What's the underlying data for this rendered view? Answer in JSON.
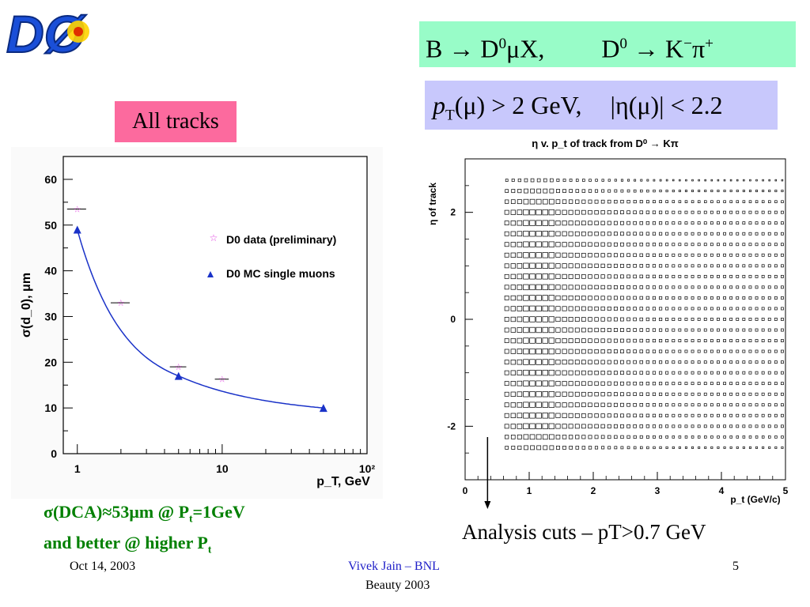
{
  "logo": {
    "text": "DØ"
  },
  "header": {
    "decay_parts": [
      "B → D",
      "0",
      "μX,",
      "D",
      "0",
      "→ K",
      "−",
      "π",
      "+"
    ],
    "cuts_parts": [
      "p",
      "T",
      "(μ) > 2 GeV,",
      "|η(μ)| < 2.2"
    ]
  },
  "label_all_tracks": "All tracks",
  "caption": {
    "line1_a": "σ(DCA)≈53μm @ P",
    "line1_sub": "t",
    "line1_b": "=1GeV",
    "line2_a": "and better @ higher P",
    "line2_sub": "t"
  },
  "analysis_note": "Analysis cuts – pT>0.7 GeV",
  "footer": {
    "date": "Oct 14, 2003",
    "author": "Vivek Jain – BNL",
    "conference": "Beauty 2003",
    "page": "5"
  },
  "colors": {
    "data_marker": "#e040e0",
    "mc_marker": "#1a32c8",
    "fit_curve": "#1a32c8",
    "decay_box": "#98fcc8",
    "cuts_box": "#c8c8fc",
    "tracks_box": "#fc6a9e",
    "caption": "#008000"
  },
  "chart_data": [
    {
      "type": "scatter",
      "title": "",
      "xlabel": "p_T, GeV",
      "ylabel": "σ(d_0), μm",
      "xscale": "log",
      "xlim": [
        0.8,
        100
      ],
      "ylim": [
        0,
        65
      ],
      "yticks": [
        "0",
        "10",
        "20",
        "30",
        "40",
        "50",
        "60"
      ],
      "xticks": [
        "1",
        "10",
        "10²"
      ],
      "grid": false,
      "legend_position": "top-right",
      "series": [
        {
          "name": "D0 data (preliminary)",
          "marker": "star",
          "x": [
            1,
            2,
            5,
            10
          ],
          "y": [
            53.5,
            33,
            19,
            16.3
          ],
          "xerr": [
            0.15,
            0.3,
            0.65,
            1.1
          ]
        },
        {
          "name": "D0 MC single muons",
          "marker": "triangle",
          "x": [
            1,
            5,
            50
          ],
          "y": [
            49,
            17,
            10
          ],
          "fit_curve": true
        }
      ]
    },
    {
      "type": "heatmap",
      "title": "η v. p_t of track from D⁰ → Kπ",
      "xlabel": "p_t (GeV/c)",
      "ylabel": "η of track",
      "xlim": [
        0,
        5
      ],
      "ylim": [
        -3,
        3
      ],
      "xticks": [
        "0",
        "1",
        "2",
        "3",
        "4",
        "5"
      ],
      "yticks": [
        "-2",
        "0",
        "2"
      ],
      "xbin_width": 0.1,
      "ybin_width": 0.2,
      "pt_range": [
        0.6,
        5.0
      ],
      "eta_range": [
        -2.5,
        2.8
      ],
      "peak_pt": [
        1.1,
        1.3
      ],
      "cut_marker": {
        "pt": 0.35,
        "label": "Analysis cuts – pT>0.7 GeV"
      }
    }
  ]
}
